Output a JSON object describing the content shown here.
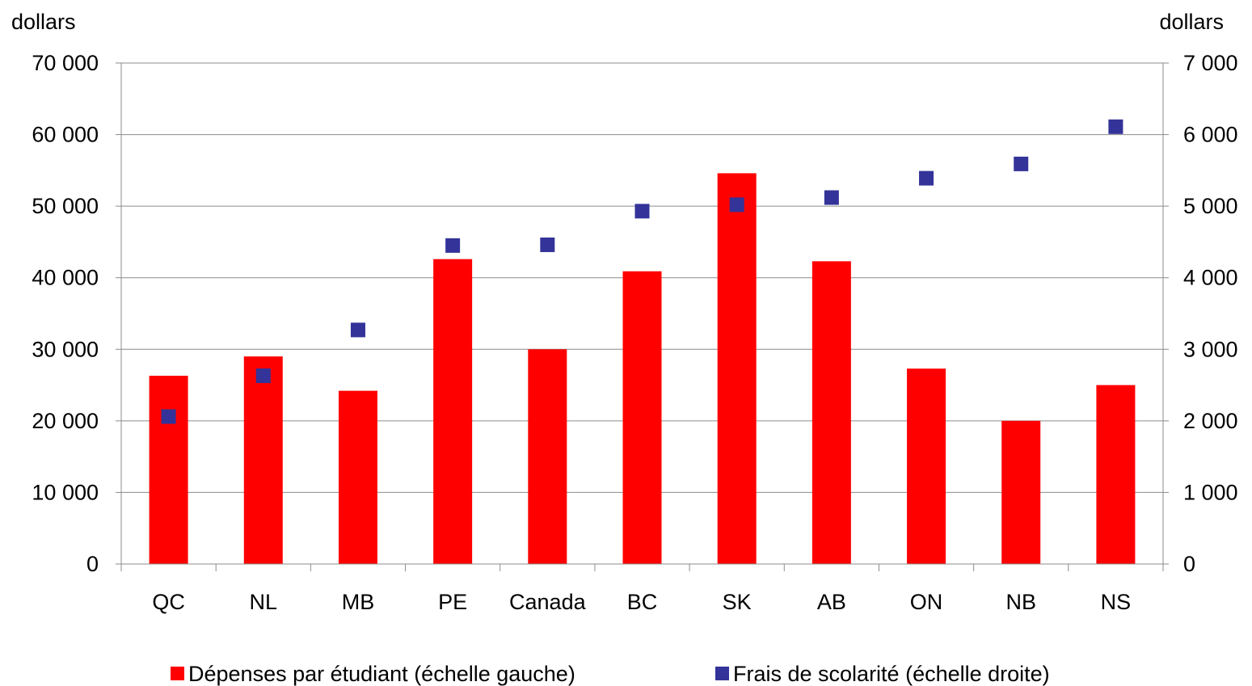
{
  "chart_data": {
    "type": "bar",
    "categories": [
      "QC",
      "NL",
      "MB",
      "PE",
      "Canada",
      "BC",
      "SK",
      "AB",
      "ON",
      "NB",
      "NS"
    ],
    "series": [
      {
        "name": "Dépenses par étudiant (échelle gauche)",
        "type": "bar",
        "axis": "left",
        "color": "#ff0000",
        "values": [
          26300,
          29000,
          24200,
          42600,
          30000,
          40900,
          54600,
          42300,
          27300,
          20000,
          25000
        ]
      },
      {
        "name": "Frais de scolarité (échelle droite)",
        "type": "scatter",
        "axis": "right",
        "color": "#333399",
        "values": [
          2060,
          2630,
          3270,
          4450,
          4460,
          4930,
          5020,
          5120,
          5390,
          5590,
          6110
        ]
      }
    ],
    "ylabel_left": "dollars",
    "ylabel_right": "dollars",
    "ylim_left": [
      0,
      70000
    ],
    "ylim_right": [
      0,
      7000
    ],
    "yticks_left": [
      "0",
      "10 000",
      "20 000",
      "30 000",
      "40 000",
      "50 000",
      "60 000",
      "70 000"
    ],
    "yticks_right": [
      "0",
      "1 000",
      "2 000",
      "3 000",
      "4 000",
      "5 000",
      "6 000",
      "7 000"
    ],
    "grid": true,
    "legend_position": "bottom"
  }
}
